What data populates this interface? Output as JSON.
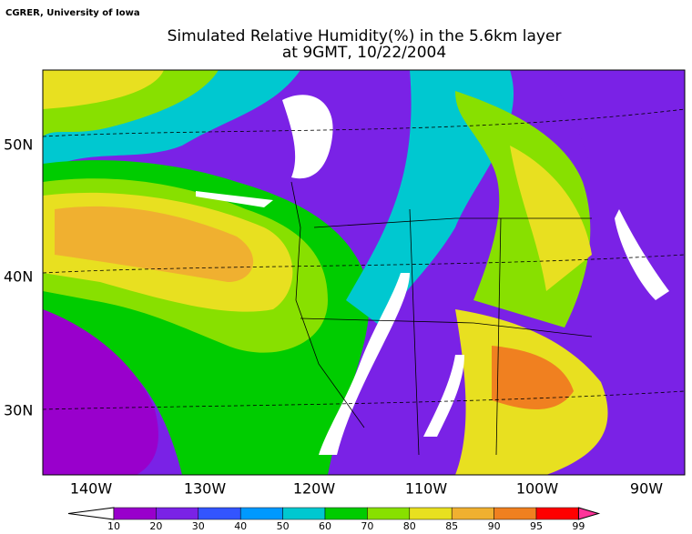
{
  "header": {
    "credit": "CGRER, University of Iowa",
    "title_lines": [
      "Simulated Relative Humidity(%) in the 5.6km layer",
      "at 9GMT, 10/22/2004"
    ]
  },
  "map": {
    "latitude_labels": [
      "50N",
      "40N",
      "30N"
    ],
    "longitude_labels": [
      "140W",
      "130W",
      "120W",
      "110W",
      "100W",
      "90W"
    ]
  },
  "colorbar": {
    "ticks": [
      10,
      20,
      30,
      40,
      50,
      60,
      70,
      80,
      85,
      90,
      95,
      99
    ],
    "under_color": "#ffffff",
    "colors": [
      "#9900cc",
      "#7a22e6",
      "#3355ff",
      "#0099ff",
      "#00c8d0",
      "#00cc00",
      "#88e000",
      "#e8e020",
      "#f0b030",
      "#f08020",
      "#ff0000"
    ],
    "over_color": "#ff3399"
  }
}
